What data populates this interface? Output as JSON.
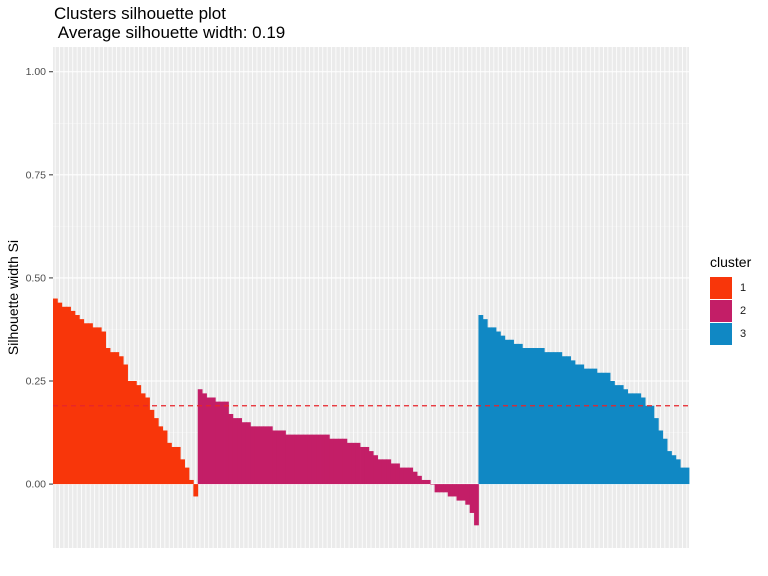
{
  "chart_data": {
    "type": "bar",
    "title": "Clusters silhouette plot",
    "subtitle": " Average silhouette width: 0.19",
    "xlabel": "",
    "ylabel": "Silhouette width Si",
    "ylim": [
      -0.155,
      1.06
    ],
    "yticks": [
      "0.00",
      "0.25",
      "0.50",
      "0.75",
      "1.00"
    ],
    "average_line": 0.19,
    "grid": true,
    "legend_position": "right",
    "legend": {
      "title": "cluster",
      "items": [
        {
          "label": "1",
          "color": "#F8360A"
        },
        {
          "label": "2",
          "color": "#C31E67"
        },
        {
          "label": "3",
          "color": "#1088C4"
        }
      ]
    },
    "series": [
      {
        "name": "1",
        "color": "#F8360A",
        "values": [
          0.45,
          0.44,
          0.43,
          0.43,
          0.42,
          0.41,
          0.4,
          0.39,
          0.39,
          0.38,
          0.38,
          0.37,
          0.33,
          0.32,
          0.32,
          0.31,
          0.29,
          0.25,
          0.25,
          0.24,
          0.22,
          0.21,
          0.18,
          0.16,
          0.14,
          0.13,
          0.1,
          0.09,
          0.09,
          0.06,
          0.04,
          0.01,
          -0.03
        ]
      },
      {
        "name": "2",
        "color": "#C31E67",
        "values": [
          0.23,
          0.22,
          0.21,
          0.21,
          0.2,
          0.2,
          0.2,
          0.17,
          0.16,
          0.16,
          0.15,
          0.15,
          0.14,
          0.14,
          0.14,
          0.14,
          0.14,
          0.13,
          0.13,
          0.13,
          0.12,
          0.12,
          0.12,
          0.12,
          0.12,
          0.12,
          0.12,
          0.12,
          0.12,
          0.12,
          0.11,
          0.11,
          0.11,
          0.11,
          0.1,
          0.1,
          0.1,
          0.09,
          0.09,
          0.08,
          0.07,
          0.06,
          0.06,
          0.06,
          0.05,
          0.05,
          0.04,
          0.04,
          0.04,
          0.03,
          0.02,
          0.01,
          0.01,
          0.0,
          -0.02,
          -0.02,
          -0.02,
          -0.03,
          -0.03,
          -0.04,
          -0.04,
          -0.05,
          -0.07,
          -0.1
        ]
      },
      {
        "name": "3",
        "color": "#1088C4",
        "values": [
          0.41,
          0.4,
          0.38,
          0.38,
          0.37,
          0.36,
          0.35,
          0.35,
          0.34,
          0.34,
          0.33,
          0.33,
          0.33,
          0.33,
          0.33,
          0.32,
          0.32,
          0.32,
          0.32,
          0.31,
          0.31,
          0.3,
          0.29,
          0.29,
          0.28,
          0.28,
          0.28,
          0.27,
          0.27,
          0.27,
          0.25,
          0.24,
          0.24,
          0.23,
          0.22,
          0.22,
          0.22,
          0.21,
          0.19,
          0.19,
          0.16,
          0.13,
          0.11,
          0.08,
          0.07,
          0.06,
          0.04,
          0.04
        ]
      }
    ]
  }
}
